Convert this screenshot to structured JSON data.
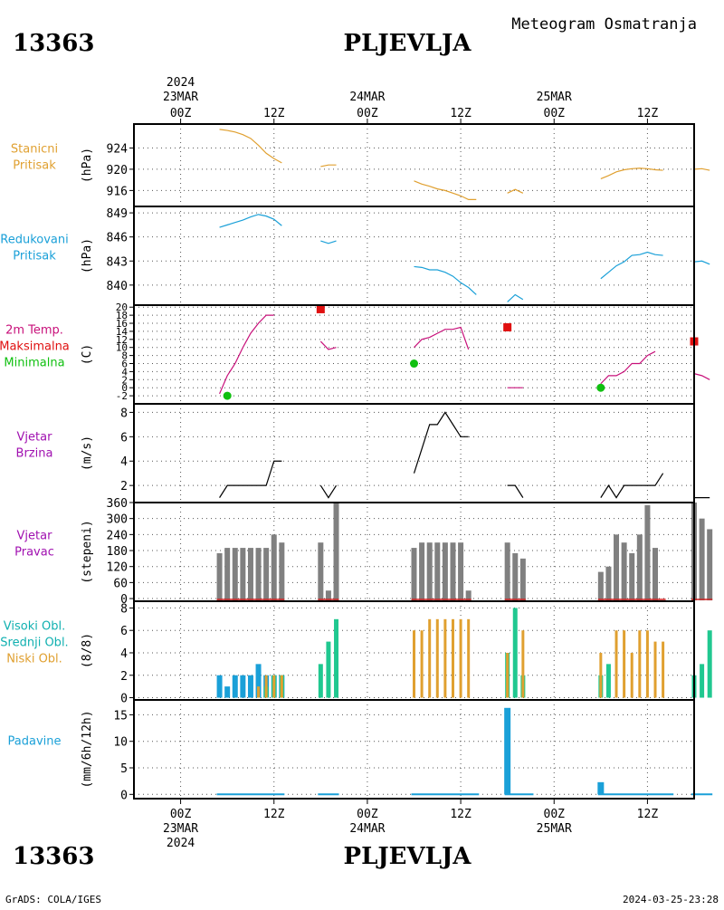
{
  "header": {
    "station_id": "13363",
    "station_name": "PLJEVLJA",
    "title": "Meteogram Osmatranja"
  },
  "footer": {
    "station_id": "13363",
    "station_name": "PLJEVLJA",
    "credit": "GrADS: COLA/IGES",
    "timestamp": "2024-03-25-23:28"
  },
  "time_axis": {
    "hours_range": [
      -6,
      66
    ],
    "ticks": [
      {
        "h": 0,
        "label": "00Z"
      },
      {
        "h": 12,
        "label": "12Z"
      },
      {
        "h": 24,
        "label": "00Z"
      },
      {
        "h": 36,
        "label": "12Z"
      },
      {
        "h": 48,
        "label": "00Z"
      },
      {
        "h": 60,
        "label": "12Z"
      }
    ],
    "top_dates": [
      {
        "h": 0,
        "lines": [
          "2024",
          "23MAR"
        ]
      },
      {
        "h": 24,
        "lines": [
          "24MAR"
        ]
      },
      {
        "h": 48,
        "lines": [
          "25MAR"
        ]
      }
    ],
    "bottom_dates": [
      {
        "h": 0,
        "lines": [
          "23MAR",
          "2024"
        ]
      },
      {
        "h": 24,
        "lines": [
          "24MAR"
        ]
      },
      {
        "h": 48,
        "lines": [
          "25MAR"
        ]
      }
    ]
  },
  "panel_labels": {
    "pressure": {
      "lines": [
        "Stanicni",
        "Pritisak"
      ],
      "unit": "(hPa)",
      "color": "#e0a030"
    },
    "reduced": {
      "lines": [
        "Redukovani",
        "Pritisak"
      ],
      "unit": "(hPa)",
      "color": "#1aa0d8"
    },
    "temp": {
      "lines": [
        "2m Temp.",
        "Maksimalna",
        "Minimalna"
      ],
      "colors": [
        "#c8107a",
        "#e01010",
        "#10c010"
      ],
      "unit": "(C)"
    },
    "wind_speed": {
      "lines": [
        "Vjetar",
        "Brzina"
      ],
      "unit": "(m/s)",
      "color": "#a010b0"
    },
    "wind_dir": {
      "lines": [
        "Vjetar",
        "Pravac"
      ],
      "unit": "(stepeni)",
      "color": "#a010b0"
    },
    "clouds": {
      "lines": [
        "Visoki Obl.",
        "Srednji Obl.",
        "Niski Obl."
      ],
      "colors": [
        "#10b0b0",
        "#10b0b0",
        "#e0a030"
      ],
      "unit": "(8/8)"
    },
    "precip": {
      "lines": [
        "Padavine"
      ],
      "unit": "(mm/6h/12h)",
      "color": "#1aa0d8"
    }
  },
  "colors": {
    "pressure": "#e0a030",
    "reduced": "#1aa0d8",
    "temp": "#c8107a",
    "tmax": "#e01010",
    "tmin": "#10c010",
    "wind": "#a010b0",
    "dir_bar": "#808080",
    "dir_base": "#d02020",
    "cloud_high": "#1aa0d8",
    "cloud_mid": "#20c890",
    "cloud_low": "#e0a030",
    "precip": "#1aa0d8"
  },
  "chart_data": [
    {
      "type": "line",
      "name": "pressure",
      "ylim": [
        913,
        928.5
      ],
      "yticks": [
        916,
        920,
        924
      ],
      "segments": [
        [
          [
            5,
            927.5
          ],
          [
            6,
            927.3
          ],
          [
            7,
            927.0
          ],
          [
            8,
            926.5
          ],
          [
            9,
            925.8
          ],
          [
            10,
            924.5
          ],
          [
            11,
            923.0
          ],
          [
            12,
            922.0
          ],
          [
            13,
            921.2
          ]
        ],
        [
          [
            18,
            920.5
          ],
          [
            19,
            920.8
          ],
          [
            20,
            920.8
          ]
        ],
        [
          [
            30,
            917.8
          ],
          [
            31,
            917.2
          ],
          [
            32,
            916.8
          ],
          [
            33,
            916.3
          ],
          [
            34,
            916.0
          ],
          [
            35,
            915.5
          ],
          [
            36,
            915.0
          ],
          [
            37,
            914.3
          ],
          [
            38,
            914.3
          ]
        ],
        [
          [
            42,
            915.5
          ],
          [
            43,
            916.2
          ],
          [
            44,
            915.5
          ]
        ],
        [
          [
            54,
            918.2
          ],
          [
            55,
            918.8
          ],
          [
            56,
            919.5
          ],
          [
            57,
            919.9
          ],
          [
            58,
            920.1
          ],
          [
            59,
            920.2
          ],
          [
            60,
            920.1
          ],
          [
            61,
            919.9
          ],
          [
            62,
            919.8
          ]
        ],
        [
          [
            66,
            920.0
          ],
          [
            67,
            920.1
          ],
          [
            68,
            919.8
          ]
        ]
      ]
    },
    {
      "type": "line",
      "name": "reduced",
      "ylim": [
        837.5,
        849.8
      ],
      "yticks": [
        840,
        843,
        846,
        849
      ],
      "segments": [
        [
          [
            5,
            847.2
          ],
          [
            6,
            847.5
          ],
          [
            7,
            847.8
          ],
          [
            8,
            848.1
          ],
          [
            9,
            848.5
          ],
          [
            10,
            848.8
          ],
          [
            11,
            848.6
          ],
          [
            12,
            848.2
          ],
          [
            13,
            847.4
          ]
        ],
        [
          [
            18,
            845.5
          ],
          [
            19,
            845.2
          ],
          [
            20,
            845.5
          ]
        ],
        [
          [
            30,
            842.3
          ],
          [
            31,
            842.2
          ],
          [
            32,
            841.9
          ],
          [
            33,
            841.9
          ],
          [
            34,
            841.6
          ],
          [
            35,
            841.1
          ],
          [
            36,
            840.3
          ],
          [
            37,
            839.7
          ],
          [
            38,
            838.8
          ]
        ],
        [
          [
            42,
            837.9
          ],
          [
            43,
            838.8
          ],
          [
            44,
            838.2
          ]
        ],
        [
          [
            54,
            840.8
          ],
          [
            55,
            841.6
          ],
          [
            56,
            842.4
          ],
          [
            57,
            842.9
          ],
          [
            58,
            843.7
          ],
          [
            59,
            843.8
          ],
          [
            60,
            844.1
          ],
          [
            61,
            843.8
          ],
          [
            62,
            843.7
          ]
        ],
        [
          [
            66,
            842.9
          ],
          [
            67,
            843.0
          ],
          [
            68,
            842.6
          ]
        ]
      ]
    },
    {
      "type": "line",
      "name": "temp",
      "ylim": [
        -4,
        20.5
      ],
      "yticks": [
        -2,
        0,
        2,
        4,
        6,
        8,
        10,
        12,
        14,
        16,
        18,
        20
      ],
      "segments": [
        [
          [
            5,
            -1.5
          ],
          [
            6,
            3
          ],
          [
            7,
            6
          ],
          [
            8,
            10
          ],
          [
            9,
            13.5
          ],
          [
            10,
            16
          ],
          [
            11,
            18
          ],
          [
            12,
            18
          ]
        ],
        [
          [
            18,
            11.5
          ],
          [
            19,
            9.5
          ],
          [
            20,
            10
          ]
        ],
        [
          [
            30,
            10
          ],
          [
            31,
            12
          ],
          [
            32,
            12.5
          ],
          [
            33,
            13.5
          ],
          [
            34,
            14.5
          ],
          [
            35,
            14.5
          ],
          [
            36,
            15
          ],
          [
            37,
            9.5
          ]
        ],
        [
          [
            42,
            0
          ],
          [
            43,
            0
          ],
          [
            44,
            0
          ]
        ],
        [
          [
            54,
            1
          ],
          [
            55,
            3
          ],
          [
            56,
            3
          ],
          [
            57,
            4
          ],
          [
            58,
            6
          ],
          [
            59,
            6
          ],
          [
            60,
            8
          ],
          [
            61,
            9
          ]
        ],
        [
          [
            66,
            3.5
          ],
          [
            67,
            3
          ],
          [
            68,
            2
          ]
        ]
      ],
      "tmax": [
        [
          18,
          19.5
        ],
        [
          42,
          15
        ],
        [
          66,
          11.5
        ]
      ],
      "tmin": [
        [
          6,
          -2
        ],
        [
          30,
          6
        ],
        [
          54,
          0
        ]
      ]
    },
    {
      "type": "line",
      "name": "wind_speed",
      "ylim": [
        0.6,
        8.7
      ],
      "yticks": [
        2,
        4,
        6,
        8
      ],
      "segments": [
        [
          [
            5,
            1
          ],
          [
            6,
            2
          ],
          [
            7,
            2
          ],
          [
            8,
            2
          ],
          [
            9,
            2
          ],
          [
            10,
            2
          ],
          [
            11,
            2
          ],
          [
            12,
            4
          ],
          [
            13,
            4
          ]
        ],
        [
          [
            18,
            2
          ],
          [
            19,
            1
          ],
          [
            20,
            2
          ]
        ],
        [
          [
            30,
            3
          ],
          [
            31,
            5
          ],
          [
            32,
            7
          ],
          [
            33,
            7
          ],
          [
            34,
            8
          ],
          [
            35,
            7
          ],
          [
            36,
            6
          ],
          [
            37,
            6
          ]
        ],
        [
          [
            42,
            2
          ],
          [
            43,
            2
          ],
          [
            44,
            1
          ]
        ],
        [
          [
            54,
            1
          ],
          [
            55,
            2
          ],
          [
            56,
            1
          ],
          [
            57,
            2
          ],
          [
            58,
            2
          ],
          [
            59,
            2
          ],
          [
            60,
            2
          ],
          [
            61,
            2
          ],
          [
            62,
            3
          ]
        ],
        [
          [
            66,
            1
          ],
          [
            67,
            1
          ],
          [
            68,
            1
          ]
        ]
      ]
    },
    {
      "type": "bar",
      "name": "wind_dir",
      "ylim": [
        -10,
        360
      ],
      "yticks": [
        0,
        60,
        120,
        180,
        240,
        300,
        360
      ],
      "x": [
        5,
        6,
        7,
        8,
        9,
        10,
        11,
        12,
        13,
        18,
        19,
        20,
        30,
        31,
        32,
        33,
        34,
        35,
        36,
        37,
        42,
        43,
        44,
        54,
        55,
        56,
        57,
        58,
        59,
        60,
        61,
        62,
        66,
        67,
        68
      ],
      "values": [
        170,
        190,
        190,
        190,
        190,
        190,
        190,
        240,
        210,
        210,
        30,
        370,
        190,
        210,
        210,
        210,
        210,
        210,
        210,
        30,
        210,
        170,
        150,
        100,
        120,
        240,
        210,
        170,
        240,
        350,
        190,
        0,
        370,
        300,
        260
      ]
    },
    {
      "type": "bar",
      "name": "clouds",
      "ylim": [
        -0.2,
        8.6
      ],
      "yticks": [
        0,
        2,
        4,
        6,
        8
      ],
      "series": [
        {
          "name": "Visoki Obl.",
          "x": [
            5,
            6,
            7,
            8,
            9,
            10,
            11,
            12,
            13
          ],
          "values": [
            2,
            1,
            2,
            2,
            2,
            3,
            2,
            2,
            2
          ]
        },
        {
          "name": "Srednji Obl.",
          "x": [
            11,
            12,
            13,
            18,
            19,
            20,
            42,
            43,
            44,
            54,
            55,
            66,
            67,
            68
          ],
          "values": [
            1,
            2,
            2,
            3,
            5,
            7,
            4,
            8,
            2,
            2,
            3,
            2,
            3,
            6
          ]
        },
        {
          "name": "Niski Obl.",
          "x": [
            10,
            11,
            12,
            13,
            30,
            31,
            32,
            33,
            34,
            35,
            36,
            37,
            42,
            44,
            54,
            56,
            57,
            58,
            59,
            60,
            61,
            62
          ],
          "values": [
            1,
            2,
            2,
            2,
            6,
            6,
            7,
            7,
            7,
            7,
            7,
            7,
            4,
            6,
            4,
            6,
            6,
            4,
            6,
            6,
            5,
            5
          ]
        }
      ]
    },
    {
      "type": "bar",
      "name": "precip",
      "ylim": [
        -0.8,
        17.8
      ],
      "yticks": [
        0,
        5,
        10,
        15
      ],
      "x": [
        6,
        42,
        54
      ],
      "widths_h": [
        6,
        1,
        1
      ],
      "values": [
        0.1,
        16.3,
        2.3
      ],
      "trace_segments": [
        [
          5,
          13
        ],
        [
          18,
          20
        ],
        [
          30,
          38
        ],
        [
          42,
          45
        ],
        [
          54,
          63
        ],
        [
          66,
          68
        ]
      ]
    }
  ]
}
